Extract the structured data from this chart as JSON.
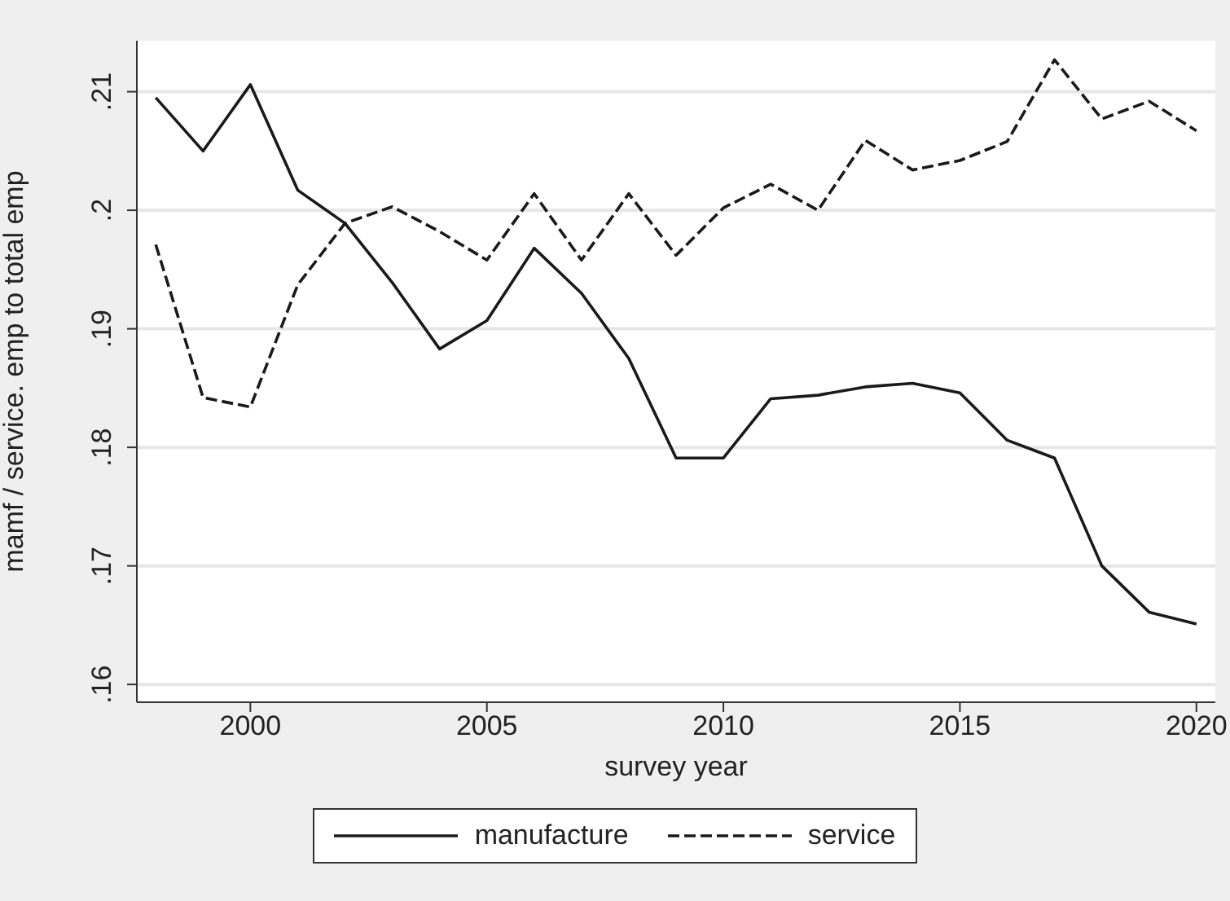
{
  "chart_data": {
    "type": "line",
    "xlabel": "survey year",
    "ylabel": "mamf / service. emp to total emp",
    "x": [
      1998,
      1999,
      2000,
      2001,
      2002,
      2003,
      2004,
      2005,
      2006,
      2007,
      2008,
      2009,
      2010,
      2011,
      2012,
      2013,
      2014,
      2015,
      2016,
      2017,
      2018,
      2019,
      2020
    ],
    "series": [
      {
        "name": "manufacture",
        "color": "#1a1a1a",
        "line_style": "solid",
        "values": [
          0.2095,
          0.205,
          0.2106,
          0.2017,
          0.1989,
          0.1939,
          0.1883,
          0.1907,
          0.1968,
          0.193,
          0.1875,
          0.1791,
          0.1791,
          0.1841,
          0.1844,
          0.1851,
          0.1854,
          0.1846,
          0.1806,
          0.1791,
          0.17,
          0.1661,
          0.1651
        ]
      },
      {
        "name": "service",
        "color": "#1a1a1a",
        "line_style": "dashed",
        "values": [
          0.1971,
          0.1842,
          0.1834,
          0.1937,
          0.1989,
          0.2003,
          0.1982,
          0.1958,
          0.2014,
          0.1958,
          0.2014,
          0.1962,
          0.2002,
          0.2022,
          0.2,
          0.2059,
          0.2034,
          0.2042,
          0.2058,
          0.2127,
          0.2077,
          0.2092,
          0.2067
        ]
      }
    ],
    "xlim": [
      1997.6,
      2020.4
    ],
    "xticks": [
      2000,
      2005,
      2010,
      2015,
      2020
    ],
    "ylim": [
      0.1585,
      0.2143
    ],
    "yticks": [
      {
        "value": 0.16,
        "label": ".16"
      },
      {
        "value": 0.17,
        "label": ".17"
      },
      {
        "value": 0.18,
        "label": ".18"
      },
      {
        "value": 0.19,
        "label": ".19"
      },
      {
        "value": 0.2,
        "label": ".2"
      },
      {
        "value": 0.21,
        "label": ".21"
      }
    ],
    "grid": "y",
    "legend": "bottom",
    "marker": "none"
  }
}
